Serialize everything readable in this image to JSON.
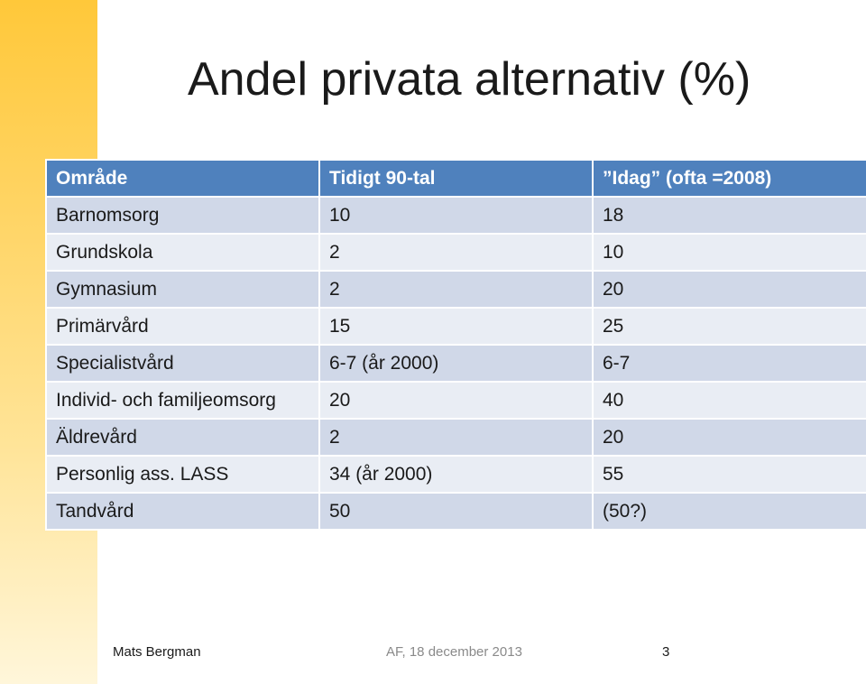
{
  "slide": {
    "title": "Andel privata alternativ (%)"
  },
  "table": {
    "headers": [
      "Område",
      "Tidigt 90-tal",
      "”Idag” (ofta =2008)"
    ],
    "rows": [
      [
        "Barnomsorg",
        "10",
        "18"
      ],
      [
        "Grundskola",
        "2",
        "10"
      ],
      [
        "Gymnasium",
        "2",
        "20"
      ],
      [
        "Primärvård",
        "15",
        "25"
      ],
      [
        "Specialistvård",
        "6-7 (år 2000)",
        "6-7"
      ],
      [
        "Individ- och familjeomsorg",
        "20",
        "40"
      ],
      [
        "Äldrevård",
        "2",
        "20"
      ],
      [
        "Personlig ass. LASS",
        "34 (år 2000)",
        "55"
      ],
      [
        "Tandvård",
        "50",
        "(50?)"
      ]
    ]
  },
  "footer": {
    "author": "Mats Bergman",
    "date": "AF, 18 december 2013",
    "page": "3"
  },
  "colors": {
    "header_bg": "#4f81bd",
    "row_odd": "#d0d8e8",
    "row_even": "#e9edf4",
    "accent_bar": "#ffc83a"
  }
}
